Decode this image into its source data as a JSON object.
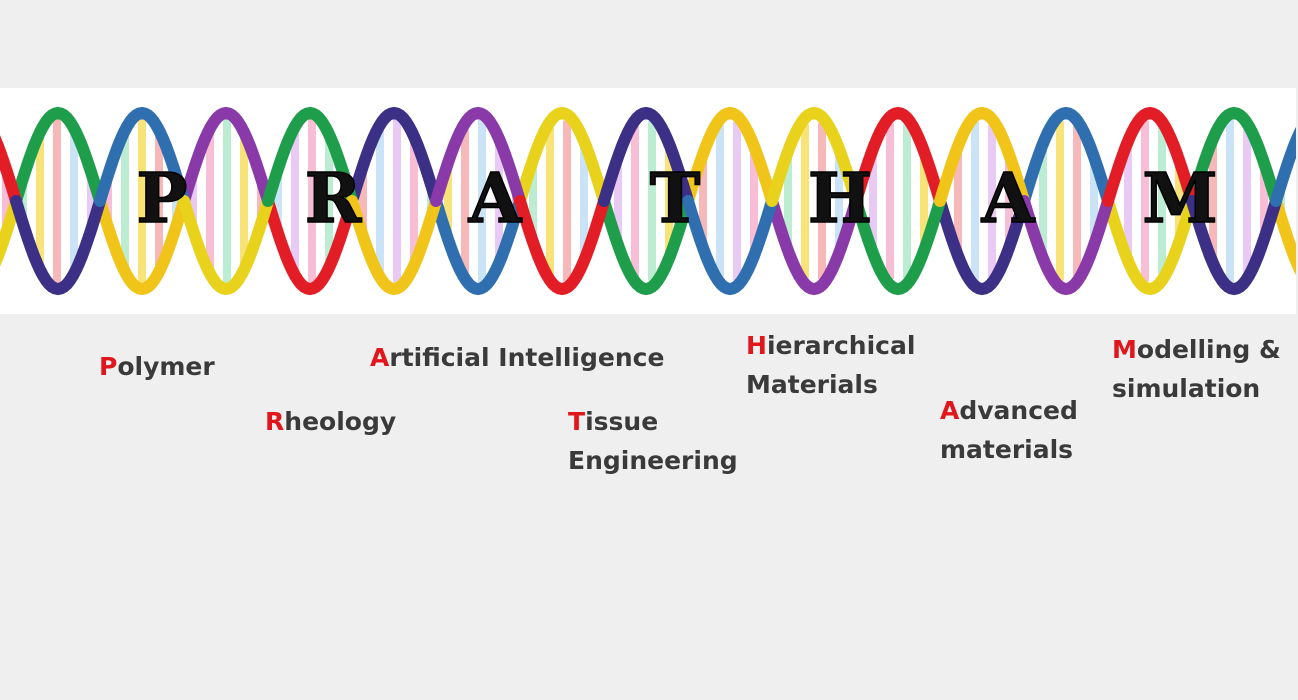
{
  "banner": {
    "letters": [
      "P",
      "R",
      "A",
      "T",
      "H",
      "A",
      "M"
    ],
    "strand_colors": [
      "#e31d25",
      "#3b2f86",
      "#2f6fb0",
      "#e8d21b",
      "#1e9e4a",
      "#f0c419",
      "#8a3aa8"
    ],
    "rung_colors": [
      "#f6a8c8",
      "#a6e6c2",
      "#f4d94a",
      "#f3a0a0",
      "#b8d9f3",
      "#e2b8f0"
    ]
  },
  "terms": [
    {
      "initial": "P",
      "rest": "olymer",
      "line2": ""
    },
    {
      "initial": "R",
      "rest": "heology",
      "line2": ""
    },
    {
      "initial": "A",
      "rest": "rtificial Intelligence",
      "line2": ""
    },
    {
      "initial": "T",
      "rest": "issue",
      "line2": "Engineering"
    },
    {
      "initial": "H",
      "rest": "ierarchical",
      "line2": "Materials"
    },
    {
      "initial": "A",
      "rest": "dvanced",
      "line2": "materials"
    },
    {
      "initial": "M",
      "rest": "odelling &",
      "line2": "simulation"
    }
  ]
}
